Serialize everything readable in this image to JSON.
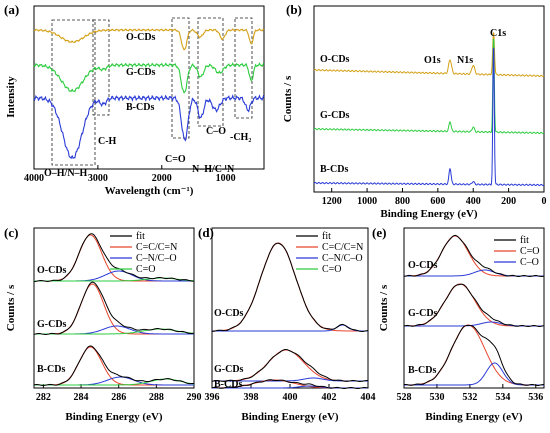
{
  "chart_data": [
    {
      "panel": "(a)",
      "type": "line",
      "xlabel": "Wavelength (cm⁻¹)",
      "ylabel": "Intensity",
      "xlim": [
        4000,
        400
      ],
      "x_ticks": [
        "4000",
        "3000",
        "2000",
        "1000"
      ],
      "series": [
        {
          "name": "O-CDs",
          "color": "#d4a017"
        },
        {
          "name": "G-CDs",
          "color": "#2ecc40"
        },
        {
          "name": "B-CDs",
          "color": "#2a3bd6"
        }
      ],
      "annotations": [
        "O–H/N–H",
        "C-H",
        "C=O",
        "N–H/C–N",
        "C–O",
        "-CH₂"
      ]
    },
    {
      "panel": "(b)",
      "type": "line",
      "xlabel": "Binding Energy (eV)",
      "ylabel": "Counts / s",
      "xlim": [
        1300,
        0
      ],
      "x_ticks": [
        "1200",
        "1000",
        "800",
        "600",
        "400",
        "200",
        "0"
      ],
      "series": [
        {
          "name": "O-CDs",
          "color": "#d4a017"
        },
        {
          "name": "G-CDs",
          "color": "#2ecc40"
        },
        {
          "name": "B-CDs",
          "color": "#2a3bd6"
        }
      ],
      "annotations": [
        "O1s",
        "N1s",
        "C1s"
      ]
    },
    {
      "panel": "(c)",
      "type": "line",
      "xlabel": "Binding Energy (eV)",
      "ylabel": "Counts / s",
      "xlim": [
        281.5,
        290
      ],
      "x_ticks": [
        "282",
        "284",
        "286",
        "288",
        "290"
      ],
      "legend": [
        {
          "name": "fit",
          "color": "#000000"
        },
        {
          "name": "C=C/C=N",
          "color": "#e8442c"
        },
        {
          "name": "C–N/C–O",
          "color": "#2a3bd6"
        },
        {
          "name": "C=O",
          "color": "#2ecc40"
        }
      ],
      "samples": [
        "O-CDs",
        "G-CDs",
        "B-CDs"
      ],
      "peaks_eV": {
        "C=C/C=N": 284.5,
        "C–N/C–O": 286.0,
        "C=O": 288.3
      }
    },
    {
      "panel": "(d)",
      "type": "line",
      "xlabel": "Binding Energy (eV)",
      "ylabel": "Counts / s",
      "xlim": [
        396,
        404
      ],
      "x_ticks": [
        "396",
        "398",
        "400",
        "402",
        "404"
      ],
      "legend": [
        {
          "name": "fit",
          "color": "#000000"
        },
        {
          "name": "C=C/C=N",
          "color": "#e8442c"
        },
        {
          "name": "C–N/C–O",
          "color": "#2a3bd6"
        },
        {
          "name": "C=O",
          "color": "#2ecc40"
        }
      ],
      "samples": [
        "O-CDs",
        "G-CDs",
        "B-CDs"
      ],
      "peaks_eV": {
        "main": 399.5,
        "minor": 402.7
      }
    },
    {
      "panel": "(e)",
      "type": "line",
      "xlabel": "Binding Energy (eV)",
      "ylabel": "Counts / s",
      "xlim": [
        528,
        536.5
      ],
      "x_ticks": [
        "528",
        "530",
        "532",
        "534",
        "536"
      ],
      "legend": [
        {
          "name": "fit",
          "color": "#000000"
        },
        {
          "name": "C=O",
          "color": "#e8442c"
        },
        {
          "name": "C–O",
          "color": "#2a3bd6"
        }
      ],
      "samples": [
        "O-CDs",
        "G-CDs",
        "B-CDs"
      ],
      "peaks_eV": {
        "C=O": 531.5,
        "C–O": 533.3
      }
    }
  ]
}
